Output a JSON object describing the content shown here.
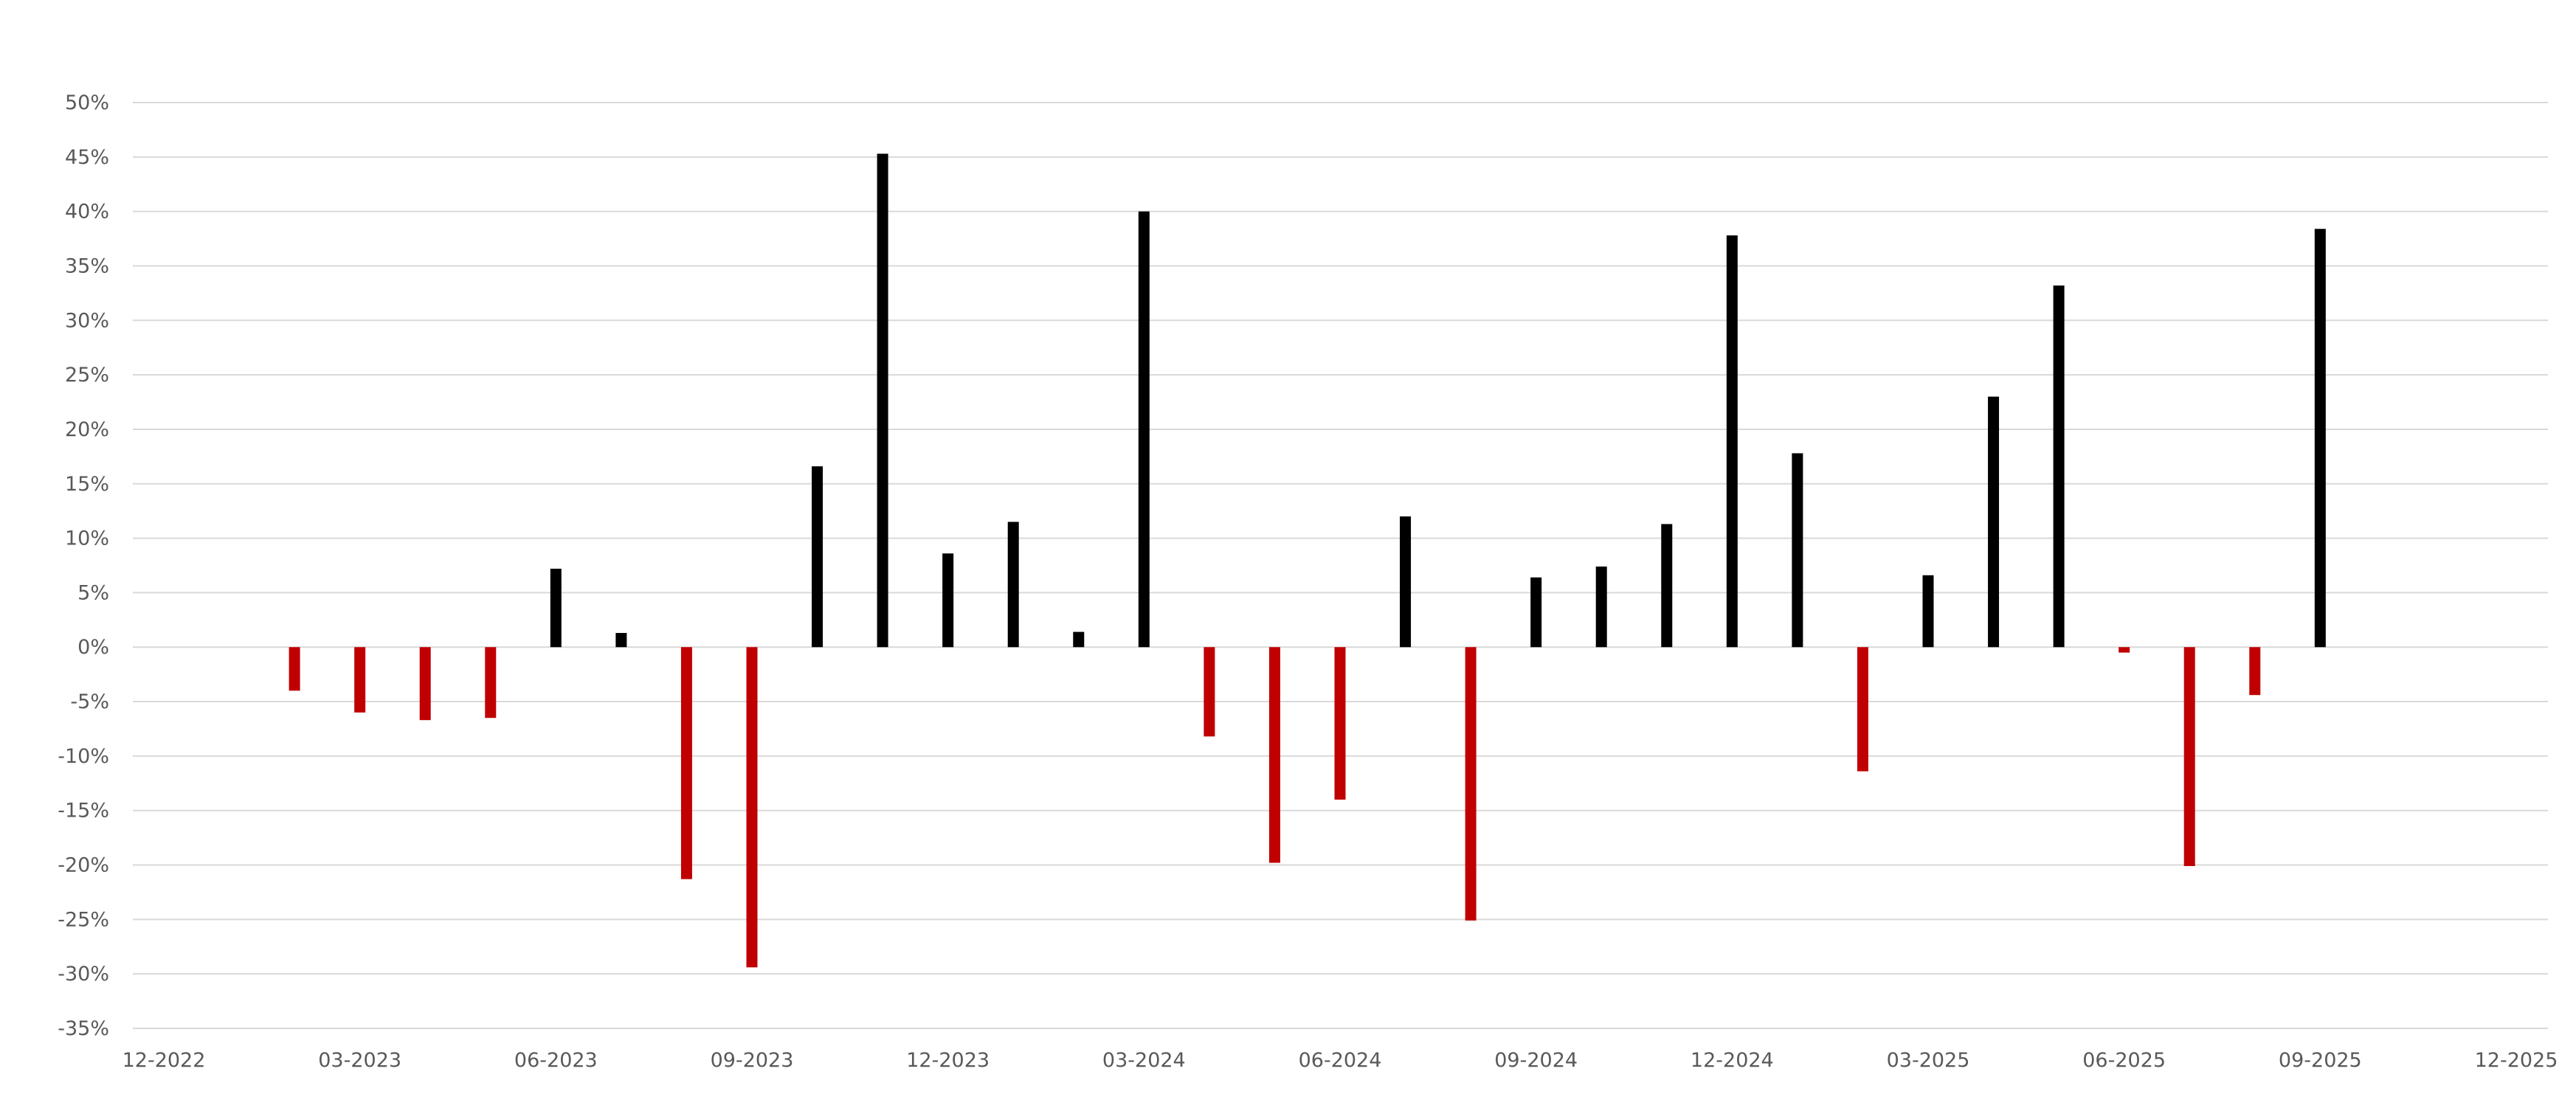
{
  "chart_data": {
    "type": "bar",
    "title": "",
    "xlabel": "",
    "ylabel": "",
    "ylim": [
      -35,
      50
    ],
    "y_ticks": [
      "50%",
      "45%",
      "40%",
      "35%",
      "30%",
      "25%",
      "20%",
      "15%",
      "10%",
      "5%",
      "0%",
      "-5%",
      "-10%",
      "-15%",
      "-20%",
      "-25%",
      "-30%",
      "-35%"
    ],
    "x_ticks": [
      "12-2022",
      "03-2023",
      "06-2023",
      "09-2023",
      "12-2023",
      "03-2024",
      "06-2024",
      "09-2024",
      "12-2024",
      "03-2025",
      "06-2025",
      "09-2025",
      "12-2025"
    ],
    "grid": true,
    "legend": "none",
    "colors": {
      "positive": "#000000",
      "negative": "#c00000",
      "grid": "#d9d9d9",
      "text": "#595959"
    },
    "categories": [
      "02-2023",
      "03-2023",
      "04-2023",
      "05-2023",
      "06-2023",
      "07-2023",
      "08-2023",
      "09-2023",
      "10-2023",
      "11-2023",
      "12-2023",
      "01-2024",
      "02-2024",
      "03-2024",
      "04-2024",
      "05-2024",
      "06-2024",
      "07-2024",
      "08-2024",
      "09-2024",
      "10-2024",
      "11-2024",
      "12-2024",
      "01-2025",
      "02-2025",
      "03-2025",
      "04-2025",
      "05-2025",
      "06-2025",
      "07-2025",
      "08-2025",
      "09-2025"
    ],
    "values": [
      -4.0,
      -6.0,
      -6.7,
      -6.5,
      7.2,
      1.3,
      -21.3,
      -29.4,
      16.6,
      45.3,
      8.6,
      11.5,
      1.4,
      40.0,
      -8.2,
      -19.8,
      -14.0,
      12.0,
      -25.1,
      6.4,
      7.4,
      11.3,
      37.8,
      17.8,
      -11.4,
      6.6,
      23.0,
      33.2,
      -0.5,
      -20.1,
      -4.4,
      38.4
    ]
  }
}
